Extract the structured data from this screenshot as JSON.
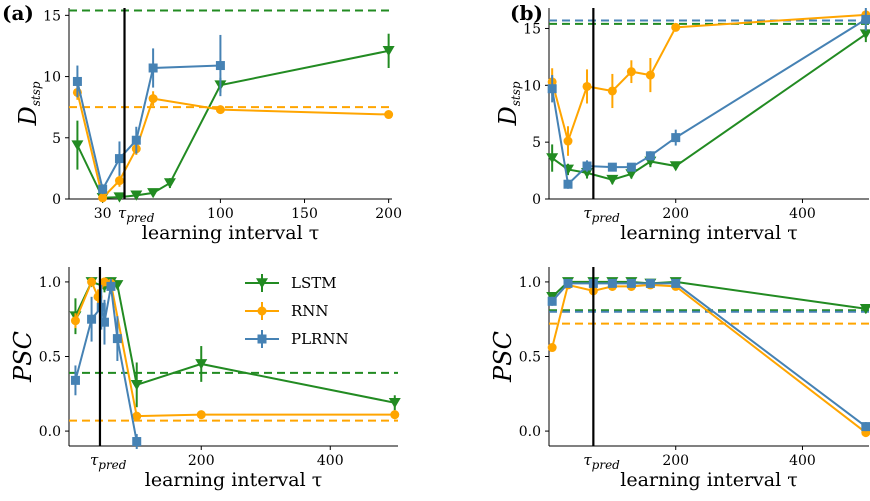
{
  "colors": {
    "LSTM": "#228b22",
    "RNN": "#ffa500",
    "PLRNN": "#4682b4"
  },
  "panel_labels": {
    "a": "(a)",
    "b": "(b)"
  },
  "legend": {
    "entries": [
      "LSTM",
      "RNN",
      "PLRNN"
    ]
  },
  "tau_pred": {
    "base": "τ",
    "sub": "pred"
  },
  "chart_data": [
    {
      "id": "a-top",
      "type": "line",
      "panel": "(a)",
      "xlabel": "learning interval τ",
      "ylabel": {
        "base": "D",
        "sub": "stsp"
      },
      "xlim": [
        10,
        202
      ],
      "ylim": [
        0,
        15.6
      ],
      "xticks": [
        30,
        100,
        150,
        200
      ],
      "xtick_labels": [
        "30",
        "100",
        "150",
        "200"
      ],
      "extra_xtick_labels": [
        {
          "x": 45,
          "base": "τ",
          "sub": "pred"
        }
      ],
      "yticks": [
        0,
        5,
        10,
        15
      ],
      "ytick_labels": [
        "0",
        "5",
        "10",
        "15"
      ],
      "vline_x": 43,
      "hlines": [
        {
          "series": "LSTM",
          "y": 15.4
        },
        {
          "series": "RNN",
          "y": 7.5
        }
      ],
      "series": [
        {
          "name": "LSTM",
          "marker": "triangle",
          "x": [
            15,
            30,
            40,
            50,
            60,
            70,
            100,
            200
          ],
          "y": [
            4.4,
            0.1,
            0.15,
            0.3,
            0.5,
            1.3,
            9.3,
            12.1
          ],
          "err": [
            2.0,
            0.1,
            0.1,
            0.2,
            0.3,
            0.4,
            0.6,
            1.4
          ]
        },
        {
          "name": "RNN",
          "marker": "circle",
          "x": [
            15,
            30,
            40,
            50,
            60,
            100,
            200
          ],
          "y": [
            8.7,
            0.1,
            1.5,
            4.1,
            8.2,
            7.3,
            6.9
          ],
          "err": [
            0.6,
            0.1,
            0.5,
            0.5,
            0.6,
            0.3,
            0.2
          ]
        },
        {
          "name": "PLRNN",
          "marker": "square",
          "x": [
            15,
            30,
            40,
            50,
            60,
            100
          ],
          "y": [
            9.6,
            0.8,
            3.3,
            4.8,
            10.7,
            10.9
          ],
          "err": [
            1.3,
            0.4,
            1.4,
            1.1,
            1.6,
            2.5
          ]
        }
      ]
    },
    {
      "id": "a-bottom",
      "type": "line",
      "panel": "(a)",
      "xlabel": "learning interval τ",
      "ylabel": "PSC",
      "xlim": [
        -5,
        505
      ],
      "ylim": [
        -0.1,
        1.1
      ],
      "xticks": [
        200,
        400
      ],
      "xtick_labels": [
        "200",
        "400"
      ],
      "extra_xtick_labels": [
        {
          "x": 43,
          "base": "τ",
          "sub": "pred"
        }
      ],
      "yticks": [
        0.0,
        0.5,
        1.0
      ],
      "ytick_labels": [
        "0.0",
        "0.5",
        "1.0"
      ],
      "vline_x": 43,
      "hlines": [
        {
          "series": "LSTM",
          "y": 0.39
        },
        {
          "series": "RNN",
          "y": 0.07
        }
      ],
      "series": [
        {
          "name": "LSTM",
          "marker": "triangle",
          "x": [
            5,
            30,
            50,
            60,
            70,
            100,
            200,
            500
          ],
          "y": [
            0.77,
            1.0,
            0.97,
            1.0,
            0.98,
            0.31,
            0.45,
            0.19
          ],
          "err": [
            0.12,
            0.03,
            0.04,
            0.03,
            0.03,
            0.15,
            0.12,
            0.05
          ]
        },
        {
          "name": "RNN",
          "marker": "circle",
          "x": [
            5,
            30,
            40,
            50,
            60,
            100,
            200,
            500
          ],
          "y": [
            0.74,
            1.0,
            0.9,
            1.0,
            0.99,
            0.1,
            0.11,
            0.11
          ],
          "err": [
            0.05,
            0.02,
            0.05,
            0.02,
            0.02,
            0.02,
            0.02,
            0.03
          ]
        },
        {
          "name": "PLRNN",
          "marker": "square",
          "x": [
            5,
            30,
            45,
            50,
            60,
            70,
            100
          ],
          "y": [
            0.34,
            0.75,
            0.83,
            0.73,
            0.97,
            0.62,
            -0.07
          ],
          "err": [
            0.1,
            0.15,
            0.15,
            0.15,
            0.05,
            0.15,
            0.05
          ]
        }
      ]
    },
    {
      "id": "b-top",
      "type": "line",
      "panel": "(b)",
      "xlabel": "learning interval τ",
      "ylabel": {
        "base": "D",
        "sub": "stsp"
      },
      "xlim": [
        0,
        505
      ],
      "ylim": [
        0,
        16.8
      ],
      "xticks": [
        200,
        400
      ],
      "xtick_labels": [
        "200",
        "400"
      ],
      "extra_xtick_labels": [
        {
          "x": 70,
          "base": "τ",
          "sub": "pred"
        }
      ],
      "yticks": [
        0,
        5,
        10,
        15
      ],
      "ytick_labels": [
        "0",
        "5",
        "10",
        "15"
      ],
      "vline_x": 70,
      "hlines": [
        {
          "series": "LSTM",
          "y": 15.4
        },
        {
          "series": "PLRNN",
          "y": 15.7
        }
      ],
      "series": [
        {
          "name": "LSTM",
          "marker": "triangle",
          "x": [
            5,
            30,
            60,
            100,
            130,
            160,
            200,
            500
          ],
          "y": [
            3.6,
            2.6,
            2.3,
            1.7,
            2.2,
            3.3,
            2.9,
            14.5
          ],
          "err": [
            1.2,
            0.5,
            0.5,
            0.4,
            0.4,
            0.5,
            0.3,
            0.7
          ]
        },
        {
          "name": "RNN",
          "marker": "circle",
          "x": [
            5,
            30,
            60,
            100,
            130,
            160,
            200,
            500
          ],
          "y": [
            10.3,
            5.1,
            9.9,
            9.5,
            11.2,
            10.9,
            15.1,
            16.2
          ],
          "err": [
            1.2,
            1.3,
            1.5,
            1.5,
            1.0,
            1.5,
            0.3,
            0.4
          ]
        },
        {
          "name": "PLRNN",
          "marker": "square",
          "x": [
            5,
            30,
            60,
            100,
            130,
            160,
            200,
            500
          ],
          "y": [
            9.7,
            1.3,
            2.9,
            2.8,
            2.8,
            3.8,
            5.4,
            15.8
          ],
          "err": [
            1.2,
            0.4,
            0.5,
            0.3,
            0.3,
            0.4,
            0.7,
            1.0
          ]
        }
      ]
    },
    {
      "id": "b-bottom",
      "type": "line",
      "panel": "(b)",
      "xlabel": "learning interval τ",
      "ylabel": "PSC",
      "xlim": [
        0,
        505
      ],
      "ylim": [
        -0.1,
        1.1
      ],
      "xticks": [
        200,
        400
      ],
      "xtick_labels": [
        "200",
        "400"
      ],
      "extra_xtick_labels": [
        {
          "x": 70,
          "base": "τ",
          "sub": "pred"
        }
      ],
      "yticks": [
        0.0,
        0.5,
        1.0
      ],
      "ytick_labels": [
        "0.0",
        "0.5",
        "1.0"
      ],
      "vline_x": 70,
      "hlines": [
        {
          "series": "LSTM",
          "y": 0.81
        },
        {
          "series": "PLRNN",
          "y": 0.8
        },
        {
          "series": "RNN",
          "y": 0.72
        }
      ],
      "series": [
        {
          "name": "LSTM",
          "marker": "triangle",
          "x": [
            5,
            30,
            70,
            100,
            130,
            160,
            200,
            500
          ],
          "y": [
            0.9,
            1.0,
            1.0,
            1.0,
            1.0,
            0.99,
            1.0,
            0.82
          ],
          "err": [
            0.03,
            0.02,
            0.02,
            0.02,
            0.02,
            0.02,
            0.02,
            0.03
          ]
        },
        {
          "name": "RNN",
          "marker": "circle",
          "x": [
            5,
            30,
            70,
            100,
            130,
            160,
            200,
            500
          ],
          "y": [
            0.56,
            0.98,
            0.94,
            0.97,
            0.97,
            0.98,
            0.97,
            -0.01
          ],
          "err": [
            0.02,
            0.02,
            0.04,
            0.03,
            0.03,
            0.02,
            0.02,
            0.03
          ]
        },
        {
          "name": "PLRNN",
          "marker": "square",
          "x": [
            5,
            30,
            70,
            100,
            130,
            160,
            200,
            500
          ],
          "y": [
            0.87,
            0.99,
            0.99,
            0.99,
            0.99,
            0.99,
            0.99,
            0.03
          ],
          "err": [
            0.03,
            0.02,
            0.02,
            0.02,
            0.02,
            0.02,
            0.02,
            0.03
          ]
        }
      ]
    }
  ]
}
